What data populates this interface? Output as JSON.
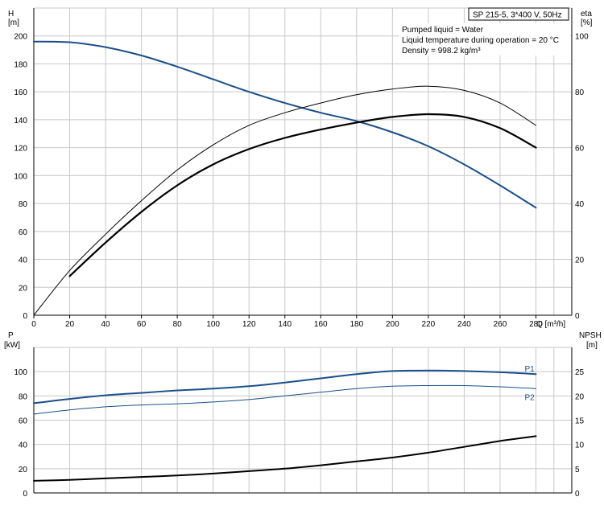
{
  "colors": {
    "grid": "#c8c8c8",
    "blue": "#1a4f8b",
    "black": "#000000",
    "axis": "#000000"
  },
  "legend_box": {
    "label": "SP 215-5, 3*400 V, 50Hz"
  },
  "info_lines": [
    "Pumped liquid = Water",
    "Liquid temperature during operation = 20 °C",
    "Density = 998.2 kg/m³"
  ],
  "chart_data": [
    {
      "type": "line",
      "panel": "top",
      "xlabel": "Q [m³/h]",
      "ylabel_left": [
        "H",
        "[m]"
      ],
      "ylabel_right": [
        "eta",
        "[%]"
      ],
      "xlim": [
        0,
        300
      ],
      "ylim_left": [
        0,
        220
      ],
      "ylim_right": [
        0,
        110
      ],
      "x_ticks": [
        0,
        20,
        40,
        60,
        80,
        100,
        120,
        140,
        160,
        180,
        200,
        220,
        240,
        260,
        280
      ],
      "y_ticks_left": [
        0,
        20,
        40,
        60,
        80,
        100,
        120,
        140,
        160,
        180,
        200
      ],
      "y_ticks_right": [
        0,
        20,
        40,
        60,
        80,
        100
      ],
      "grid": true,
      "series": [
        {
          "key": "H",
          "axis": "left",
          "color": "#1a4f8b",
          "width": 2,
          "x": [
            0,
            20,
            40,
            60,
            80,
            100,
            120,
            140,
            160,
            180,
            200,
            220,
            240,
            260,
            280
          ],
          "y": [
            196,
            195.5,
            192,
            186,
            178,
            169,
            160,
            152,
            145,
            139,
            131,
            121,
            108,
            93,
            77
          ]
        },
        {
          "key": "eta-thin",
          "axis": "right",
          "color": "#000000",
          "width": 1,
          "x": [
            0,
            20,
            40,
            60,
            80,
            100,
            120,
            140,
            160,
            180,
            200,
            220,
            240,
            260,
            280
          ],
          "y": [
            0,
            16,
            29,
            41,
            52,
            61,
            68,
            72.5,
            76,
            79,
            81,
            82,
            80.5,
            76,
            68
          ]
        },
        {
          "key": "eta-thick",
          "axis": "right",
          "color": "#000000",
          "width": 2.2,
          "x": [
            20,
            40,
            60,
            80,
            100,
            120,
            140,
            160,
            180,
            200,
            220,
            240,
            260,
            280
          ],
          "y": [
            14,
            26,
            37,
            46.5,
            54,
            59.5,
            63.5,
            66.5,
            69,
            71,
            72,
            71,
            67,
            60
          ]
        }
      ]
    },
    {
      "type": "line",
      "panel": "bottom",
      "ylabel_left": [
        "P",
        "[kW]"
      ],
      "ylabel_right": [
        "NPSH",
        "[m]"
      ],
      "xlim": [
        0,
        300
      ],
      "ylim_left": [
        0,
        120
      ],
      "ylim_right": [
        0,
        30
      ],
      "y_ticks_left": [
        0,
        20,
        40,
        60,
        80,
        100
      ],
      "y_ticks_right": [
        0,
        5,
        10,
        15,
        20,
        25
      ],
      "grid": true,
      "series": [
        {
          "name": "P1",
          "axis": "left",
          "color": "#1a4f8b",
          "width": 2,
          "x": [
            0,
            20,
            40,
            60,
            80,
            100,
            120,
            140,
            160,
            180,
            200,
            220,
            240,
            260,
            280
          ],
          "y": [
            74,
            77.5,
            80.5,
            82.5,
            84.5,
            86,
            88,
            91,
            94.5,
            98,
            100.5,
            101,
            100.5,
            99.5,
            98
          ]
        },
        {
          "name": "P2",
          "axis": "left",
          "color": "#1a4f8b",
          "width": 1,
          "x": [
            0,
            20,
            40,
            60,
            80,
            100,
            120,
            140,
            160,
            180,
            200,
            220,
            240,
            260,
            280
          ],
          "y": [
            65,
            68.5,
            71,
            72.5,
            73.5,
            75,
            77,
            80,
            83,
            86,
            88,
            88.5,
            88.5,
            87.5,
            86
          ]
        },
        {
          "key": "NPSH",
          "axis": "right",
          "color": "#000000",
          "width": 2,
          "x": [
            0,
            20,
            40,
            60,
            80,
            100,
            120,
            140,
            160,
            180,
            200,
            220,
            240,
            260,
            280
          ],
          "y": [
            2.5,
            2.7,
            3.0,
            3.3,
            3.6,
            4.0,
            4.5,
            5.0,
            5.7,
            6.5,
            7.3,
            8.3,
            9.5,
            10.7,
            11.7
          ]
        }
      ]
    }
  ]
}
